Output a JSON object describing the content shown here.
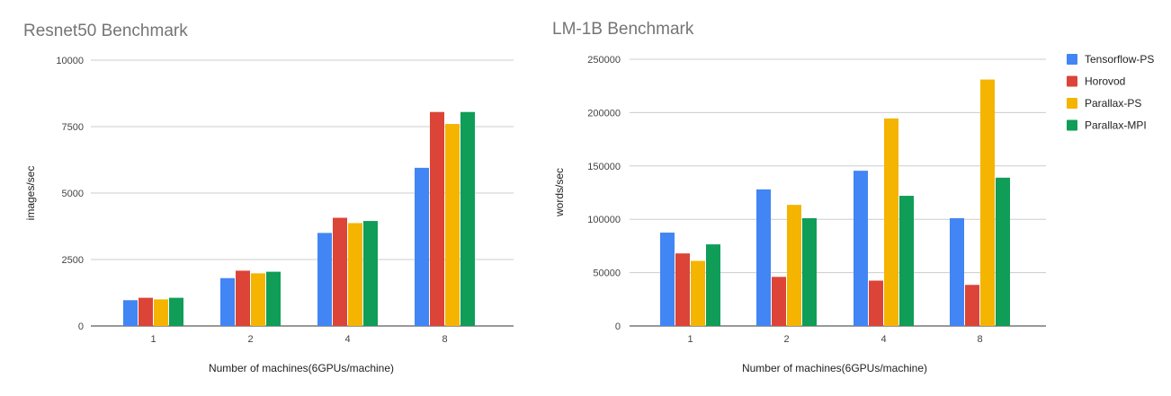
{
  "legend": [
    {
      "name": "Tensorflow-PS",
      "color": "#4285F4"
    },
    {
      "name": "Horovod",
      "color": "#DB4437"
    },
    {
      "name": "Parallax-PS",
      "color": "#F4B400"
    },
    {
      "name": "Parallax-MPI",
      "color": "#0F9D58"
    }
  ],
  "chart_data": [
    {
      "type": "bar",
      "title": "Resnet50 Benchmark",
      "xlabel": "Number of machines(6GPUs/machine)",
      "ylabel": "images/sec",
      "categories": [
        "1",
        "2",
        "4",
        "8"
      ],
      "ylim": [
        0,
        10000
      ],
      "yticks": [
        0,
        2500,
        5000,
        7500,
        10000
      ],
      "grid": true,
      "series": [
        {
          "name": "Tensorflow-PS",
          "color": "#4285F4",
          "values": [
            970,
            1800,
            3500,
            5950
          ]
        },
        {
          "name": "Horovod",
          "color": "#DB4437",
          "values": [
            1060,
            2080,
            4070,
            8050
          ]
        },
        {
          "name": "Parallax-PS",
          "color": "#F4B400",
          "values": [
            1000,
            1980,
            3870,
            7600
          ]
        },
        {
          "name": "Parallax-MPI",
          "color": "#0F9D58",
          "values": [
            1060,
            2040,
            3950,
            8050
          ]
        }
      ]
    },
    {
      "type": "bar",
      "title": "LM-1B Benchmark",
      "xlabel": "Number of machines(6GPUs/machine)",
      "ylabel": "words/sec",
      "categories": [
        "1",
        "2",
        "4",
        "8"
      ],
      "ylim": [
        0,
        250000
      ],
      "yticks": [
        0,
        50000,
        100000,
        150000,
        200000,
        250000
      ],
      "grid": true,
      "legend_position": "right",
      "series": [
        {
          "name": "Tensorflow-PS",
          "color": "#4285F4",
          "values": [
            87500,
            128000,
            145500,
            101000
          ]
        },
        {
          "name": "Horovod",
          "color": "#DB4437",
          "values": [
            68000,
            46000,
            42500,
            38500
          ]
        },
        {
          "name": "Parallax-PS",
          "color": "#F4B400",
          "values": [
            61000,
            113500,
            194500,
            231000
          ]
        },
        {
          "name": "Parallax-MPI",
          "color": "#0F9D58",
          "values": [
            76500,
            101000,
            122000,
            139000
          ]
        }
      ]
    }
  ]
}
